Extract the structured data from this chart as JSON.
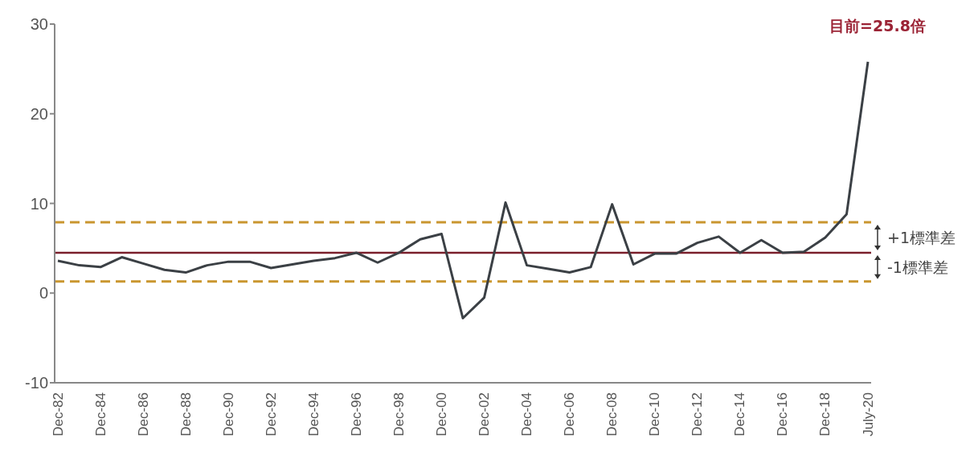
{
  "chart_data": {
    "type": "line",
    "categories": [
      "Dec-82",
      null,
      "Dec-84",
      null,
      "Dec-86",
      null,
      "Dec-88",
      null,
      "Dec-90",
      null,
      "Dec-92",
      null,
      "Dec-94",
      null,
      "Dec-96",
      null,
      "Dec-98",
      null,
      "Dec-00",
      null,
      "Dec-02",
      null,
      "Dec-04",
      null,
      "Dec-06",
      null,
      "Dec-08",
      null,
      "Dec-10",
      null,
      "Dec-12",
      null,
      "Dec-14",
      null,
      "Dec-16",
      null,
      "Dec-18",
      null,
      "July-20"
    ],
    "series": [
      {
        "color": "#3b4045",
        "values": [
          3.6,
          3.1,
          2.9,
          4.0,
          3.3,
          2.6,
          2.3,
          3.1,
          3.5,
          3.5,
          2.8,
          3.2,
          3.6,
          3.9,
          4.5,
          3.4,
          4.5,
          6.0,
          6.6,
          -2.8,
          -0.5,
          10.1,
          3.1,
          2.7,
          2.3,
          2.9,
          9.9,
          3.2,
          4.4,
          4.4,
          5.6,
          6.3,
          4.5,
          5.9,
          4.5,
          4.6,
          6.2,
          8.8,
          25.8
        ]
      }
    ],
    "ylim": [
      -10,
      30
    ],
    "yticks": [
      -10,
      0,
      10,
      20,
      30
    ],
    "marker": "none",
    "line_style": "solid",
    "ref_lines": [
      {
        "axis": "y",
        "value": 4.5,
        "color": "#7a1f2b",
        "line_style": "solid"
      },
      {
        "axis": "y",
        "value": 7.9,
        "label": "+1標準差",
        "color": "#c9962f",
        "line_style": "dashed"
      },
      {
        "axis": "y",
        "value": 1.3,
        "label": "-1標準差",
        "color": "#c9962f",
        "line_style": "dashed"
      }
    ],
    "annotations": [
      {
        "text": "目前=25.8倍",
        "x": "July-20",
        "y": 25.8
      }
    ]
  }
}
